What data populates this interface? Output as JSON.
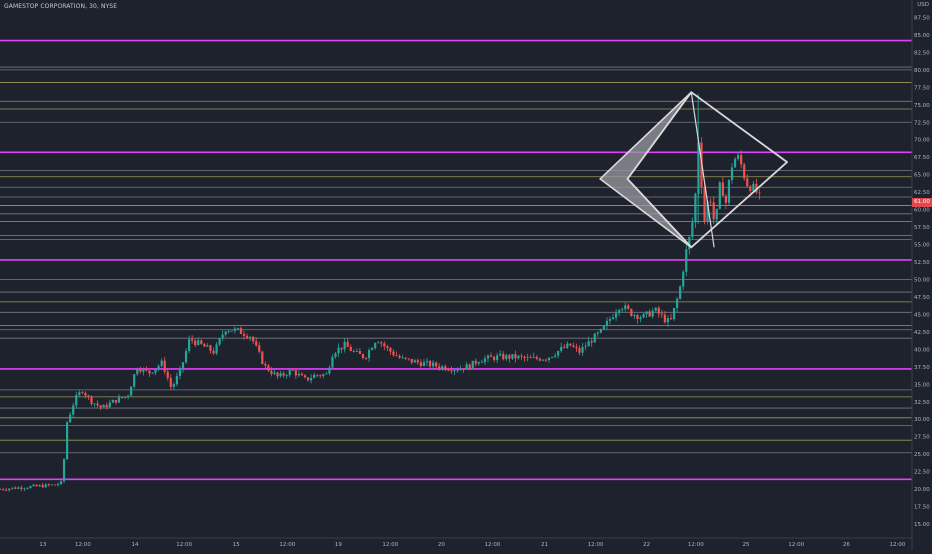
{
  "title": "GAMESTOP CORPORATION, 30, NYSE",
  "currency": "USD",
  "price_tag": "61.00",
  "colors": {
    "background": "#1e222d",
    "up": "#26a69a",
    "down": "#ef5350",
    "magenta_level": "#e040fb",
    "yellow_level": "#c8c36a",
    "gray_level": "#9598a1",
    "pattern": "#d9d9dc",
    "axis_text": "#b2b5be"
  },
  "chart_data": {
    "type": "candlestick",
    "title": "GAMESTOP CORPORATION, 30, NYSE",
    "ylim": [
      13.0,
      90.0
    ],
    "y_ticks": [
      "15.00",
      "17.50",
      "20.00",
      "22.50",
      "25.00",
      "27.50",
      "30.00",
      "32.50",
      "35.00",
      "37.50",
      "40.00",
      "42.50",
      "45.00",
      "47.50",
      "50.00",
      "52.50",
      "55.00",
      "57.50",
      "60.00",
      "62.50",
      "65.00",
      "67.50",
      "70.00",
      "72.50",
      "75.00",
      "77.50",
      "80.00",
      "82.50",
      "85.00",
      "87.50"
    ],
    "x_ticks": [
      {
        "label": "13",
        "pos": 0.047
      },
      {
        "label": "12:00",
        "pos": 0.091
      },
      {
        "label": "14",
        "pos": 0.148
      },
      {
        "label": "12:00",
        "pos": 0.202
      },
      {
        "label": "15",
        "pos": 0.259
      },
      {
        "label": "12:00",
        "pos": 0.315
      },
      {
        "label": "19",
        "pos": 0.371
      },
      {
        "label": "12:00",
        "pos": 0.428
      },
      {
        "label": "20",
        "pos": 0.484
      },
      {
        "label": "12:00",
        "pos": 0.54
      },
      {
        "label": "21",
        "pos": 0.597
      },
      {
        "label": "12:00",
        "pos": 0.653
      },
      {
        "label": "22",
        "pos": 0.709
      },
      {
        "label": "12:00",
        "pos": 0.763
      },
      {
        "label": "25",
        "pos": 0.818
      },
      {
        "label": "12:00",
        "pos": 0.873
      },
      {
        "label": "26",
        "pos": 0.928
      },
      {
        "label": "12:00",
        "pos": 0.984
      }
    ],
    "levels": [
      {
        "price": 84.2,
        "kind": "magenta"
      },
      {
        "price": 80.4,
        "kind": "gray"
      },
      {
        "price": 80.0,
        "kind": "gray"
      },
      {
        "price": 78.2,
        "kind": "yellow"
      },
      {
        "price": 75.5,
        "kind": "gray"
      },
      {
        "price": 74.4,
        "kind": "yellow"
      },
      {
        "price": 72.5,
        "kind": "gray"
      },
      {
        "price": 68.2,
        "kind": "magenta"
      },
      {
        "price": 65.6,
        "kind": "gray"
      },
      {
        "price": 64.7,
        "kind": "yellow"
      },
      {
        "price": 63.2,
        "kind": "gray"
      },
      {
        "price": 61.8,
        "kind": "gray"
      },
      {
        "price": 60.6,
        "kind": "yellow"
      },
      {
        "price": 59.4,
        "kind": "gray"
      },
      {
        "price": 58.3,
        "kind": "yellow"
      },
      {
        "price": 56.3,
        "kind": "gray"
      },
      {
        "price": 55.7,
        "kind": "gray"
      },
      {
        "price": 52.8,
        "kind": "magenta"
      },
      {
        "price": 50.0,
        "kind": "gray"
      },
      {
        "price": 48.2,
        "kind": "gray"
      },
      {
        "price": 46.8,
        "kind": "yellow"
      },
      {
        "price": 45.3,
        "kind": "gray"
      },
      {
        "price": 43.4,
        "kind": "yellow"
      },
      {
        "price": 42.8,
        "kind": "gray"
      },
      {
        "price": 41.6,
        "kind": "gray"
      },
      {
        "price": 37.2,
        "kind": "magenta"
      },
      {
        "price": 34.2,
        "kind": "gray"
      },
      {
        "price": 33.2,
        "kind": "yellow"
      },
      {
        "price": 31.6,
        "kind": "gray"
      },
      {
        "price": 30.2,
        "kind": "yellow"
      },
      {
        "price": 29.1,
        "kind": "gray"
      },
      {
        "price": 27.0,
        "kind": "yellow"
      },
      {
        "price": 25.2,
        "kind": "gray"
      },
      {
        "price": 21.4,
        "kind": "magenta"
      }
    ],
    "price_path": [
      [
        0.0,
        20.0
      ],
      [
        0.06,
        20.6
      ],
      [
        0.069,
        21.0
      ],
      [
        0.072,
        29.0
      ],
      [
        0.082,
        32.8
      ],
      [
        0.09,
        34.2
      ],
      [
        0.1,
        32.6
      ],
      [
        0.112,
        31.6
      ],
      [
        0.125,
        32.6
      ],
      [
        0.14,
        33.4
      ],
      [
        0.15,
        37.5
      ],
      [
        0.163,
        36.6
      ],
      [
        0.178,
        38.1
      ],
      [
        0.188,
        34.4
      ],
      [
        0.198,
        37.0
      ],
      [
        0.208,
        41.5
      ],
      [
        0.222,
        40.5
      ],
      [
        0.235,
        39.6
      ],
      [
        0.247,
        43.0
      ],
      [
        0.262,
        42.6
      ],
      [
        0.275,
        41.9
      ],
      [
        0.29,
        37.6
      ],
      [
        0.305,
        36.0
      ],
      [
        0.32,
        37.0
      ],
      [
        0.335,
        35.6
      ],
      [
        0.345,
        36.3
      ],
      [
        0.358,
        36.4
      ],
      [
        0.365,
        39.6
      ],
      [
        0.378,
        40.6
      ],
      [
        0.39,
        39.4
      ],
      [
        0.4,
        38.9
      ],
      [
        0.413,
        41.6
      ],
      [
        0.425,
        40.0
      ],
      [
        0.44,
        38.6
      ],
      [
        0.46,
        38.1
      ],
      [
        0.48,
        37.6
      ],
      [
        0.5,
        37.2
      ],
      [
        0.515,
        37.6
      ],
      [
        0.525,
        38.5
      ],
      [
        0.545,
        38.9
      ],
      [
        0.565,
        38.9
      ],
      [
        0.58,
        38.6
      ],
      [
        0.6,
        38.8
      ],
      [
        0.615,
        40.0
      ],
      [
        0.625,
        40.6
      ],
      [
        0.635,
        39.6
      ],
      [
        0.648,
        41.3
      ],
      [
        0.66,
        42.6
      ],
      [
        0.67,
        44.6
      ],
      [
        0.68,
        46.4
      ],
      [
        0.692,
        45.2
      ],
      [
        0.705,
        44.6
      ],
      [
        0.718,
        45.6
      ],
      [
        0.73,
        44.2
      ],
      [
        0.735,
        43.8
      ],
      [
        0.745,
        48.3
      ],
      [
        0.752,
        53.8
      ],
      [
        0.758,
        57.0
      ],
      [
        0.762,
        61.0
      ],
      [
        0.766,
        70.3
      ],
      [
        0.772,
        58.0
      ],
      [
        0.778,
        62.6
      ],
      [
        0.784,
        57.4
      ],
      [
        0.79,
        64.0
      ],
      [
        0.796,
        61.0
      ],
      [
        0.802,
        66.2
      ],
      [
        0.808,
        67.8
      ],
      [
        0.814,
        66.0
      ],
      [
        0.818,
        63.8
      ],
      [
        0.824,
        63.3
      ],
      [
        0.83,
        62.4
      ],
      [
        0.836,
        60.8
      ]
    ],
    "annotation": {
      "type": "diamond-pattern",
      "points": [
        [
          0.758,
          76.8
        ],
        [
          0.863,
          66.8
        ],
        [
          0.758,
          54.6
        ],
        [
          0.688,
          64.4
        ]
      ],
      "filled_wedge": [
        [
          0.758,
          76.8
        ],
        [
          0.658,
          64.4
        ],
        [
          0.758,
          54.6
        ],
        [
          0.688,
          64.4
        ]
      ]
    }
  }
}
